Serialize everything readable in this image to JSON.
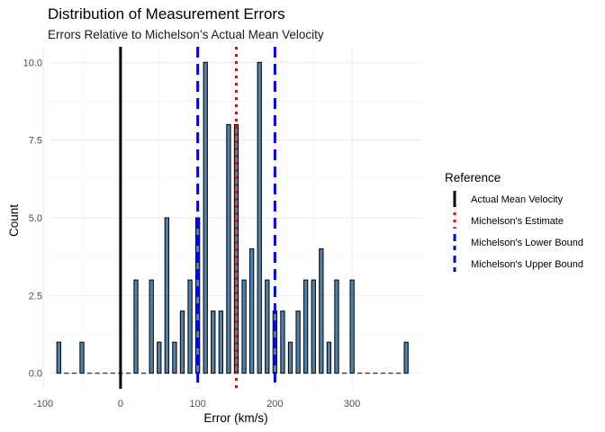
{
  "chart_data": {
    "type": "bar",
    "title": "Distribution of Measurement Errors",
    "subtitle": "Errors Relative to Michelson’s Actual Mean Velocity",
    "xlabel": "Error (km/s)",
    "ylabel": "Count",
    "xlim": [
      -92,
      392
    ],
    "ylim": [
      -0.5,
      10.5
    ],
    "x_ticks": [
      -100,
      0,
      100,
      200,
      300
    ],
    "x_tick_labels": [
      "-100",
      "0",
      "100",
      "200",
      "300"
    ],
    "y_ticks": [
      0,
      2.5,
      5,
      7.5,
      10
    ],
    "y_tick_labels": [
      "0.0",
      "2.5",
      "5.0",
      "7.5",
      "10.0"
    ],
    "bins": {
      "x": [
        -80,
        -70,
        -60,
        -50,
        -40,
        -30,
        -20,
        -10,
        0,
        10,
        20,
        30,
        40,
        50,
        60,
        70,
        80,
        90,
        100,
        110,
        120,
        130,
        140,
        150,
        160,
        170,
        180,
        190,
        200,
        210,
        220,
        230,
        240,
        250,
        260,
        270,
        280,
        290,
        300,
        310,
        320,
        330,
        340,
        350,
        360,
        370
      ],
      "values": [
        1,
        0,
        0,
        1,
        0,
        0,
        0,
        0,
        0,
        0,
        3,
        0,
        3,
        1,
        5,
        1,
        2,
        3,
        5,
        10,
        2,
        2,
        8,
        8,
        3,
        4,
        10,
        3,
        2,
        2,
        1,
        2,
        3,
        3,
        4,
        1,
        3,
        0,
        3,
        0,
        0,
        0,
        0,
        0,
        0,
        1
      ]
    },
    "reference_lines": [
      {
        "name": "Actual Mean Velocity",
        "x": 0,
        "color": "#000000",
        "style": "solid"
      },
      {
        "name": "Michelson's Estimate",
        "x": 150,
        "color": "#ff0000",
        "style": "dotted"
      },
      {
        "name": "Michelson's Lower Bound",
        "x": 100,
        "color": "#0000ff",
        "style": "dashed"
      },
      {
        "name": "Michelson's Upper Bound",
        "x": 200,
        "color": "#0000ff",
        "style": "dashed"
      }
    ],
    "grid": true,
    "legend": {
      "title": "Reference",
      "placement": "right",
      "entries": [
        "Actual Mean Velocity",
        "Michelson's Estimate",
        "Michelson's Lower Bound",
        "Michelson's Upper Bound"
      ]
    },
    "colors": {
      "bar_fill": "#4f81a9",
      "bar_outline": "#000000",
      "grid": "#ebebeb"
    }
  }
}
